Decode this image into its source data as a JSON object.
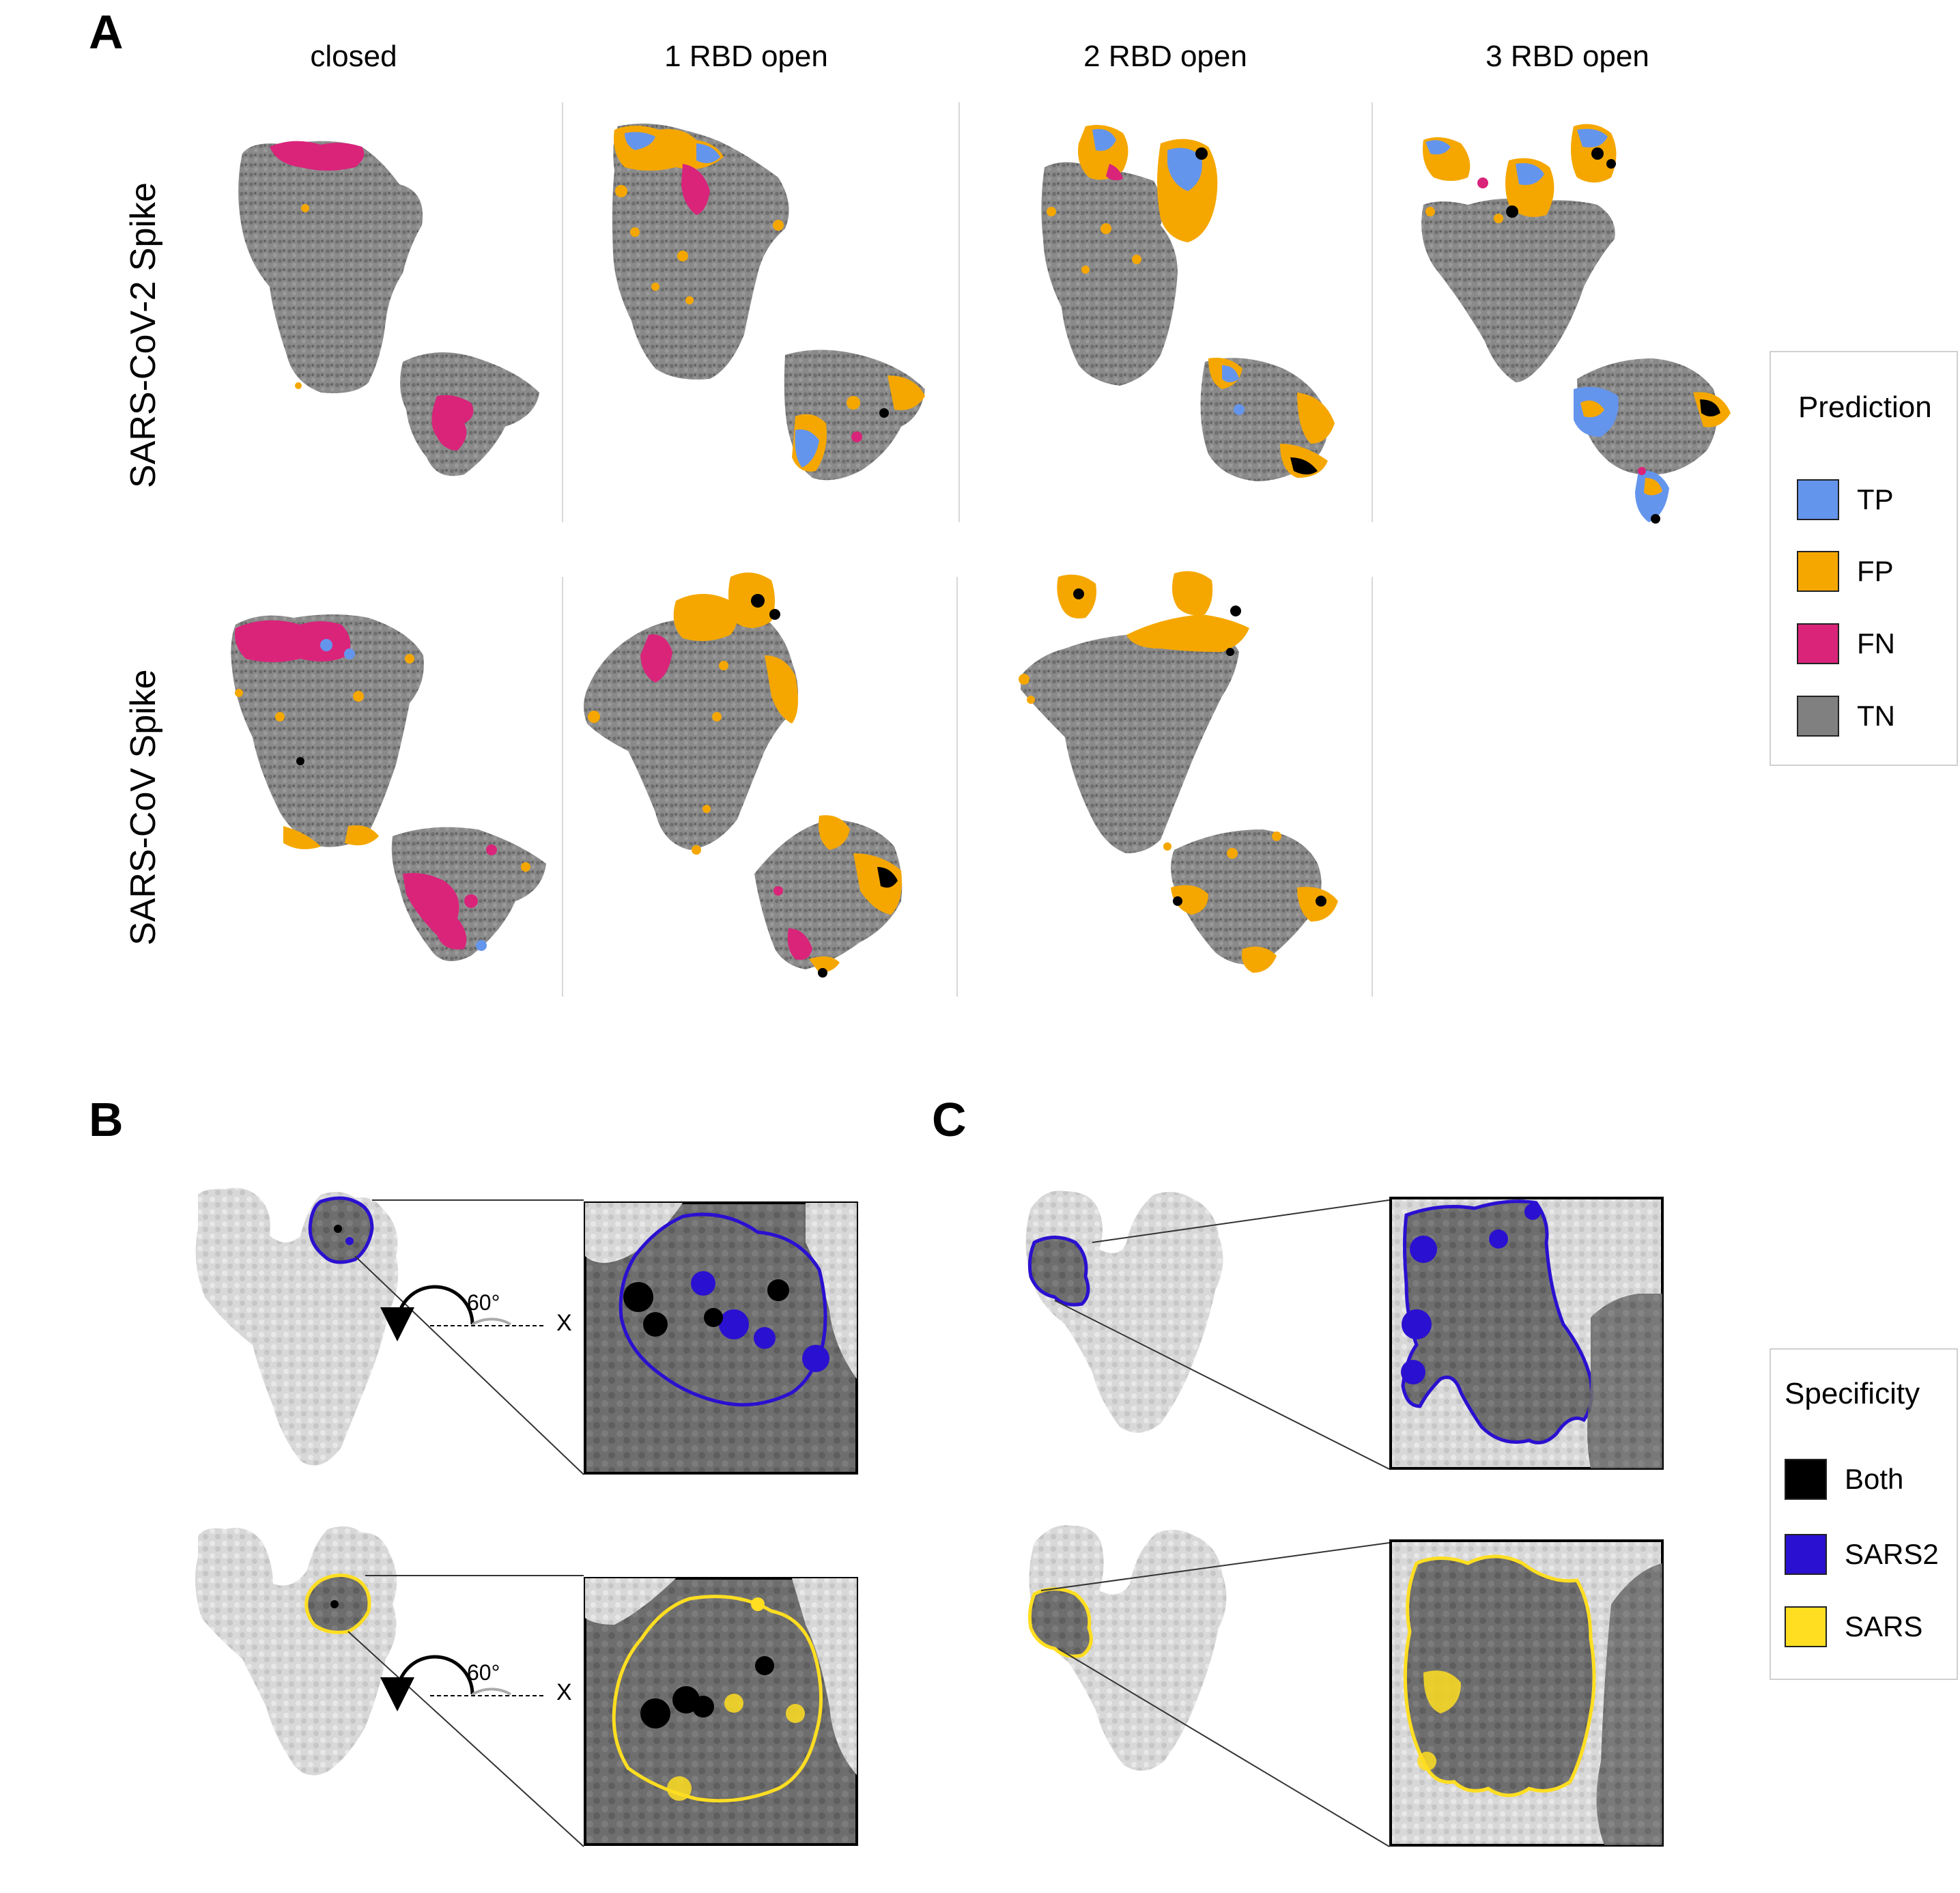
{
  "panels": {
    "a": "A",
    "b": "B",
    "c": "C"
  },
  "panel_a": {
    "columns": [
      "closed",
      "1 RBD open",
      "2 RBD open",
      "3 RBD open"
    ],
    "rows": [
      "SARS-CoV-2 Spike",
      "SARS-CoV Spike"
    ],
    "legend": {
      "title": "Prediction",
      "items": [
        {
          "label": "TP",
          "color": "#6495ed"
        },
        {
          "label": "FP",
          "color": "#f5a700"
        },
        {
          "label": "FN",
          "color": "#d9247a"
        },
        {
          "label": "TN",
          "color": "#808080"
        }
      ]
    }
  },
  "panel_bc": {
    "rotation_label": "60°",
    "axis_label": "X",
    "legend": {
      "title": "Specificity",
      "items": [
        {
          "label": "Both",
          "color": "#000000"
        },
        {
          "label": "SARS2",
          "color": "#2a10d0"
        },
        {
          "label": "SARS",
          "color": "#ffde21"
        }
      ]
    }
  },
  "colors": {
    "tn_gray": "#808080",
    "surface_light": "#d9d9d9",
    "surface_dark": "#6b6b6b",
    "sars2_outline": "#2a10d0",
    "sars_outline": "#ffde21"
  }
}
